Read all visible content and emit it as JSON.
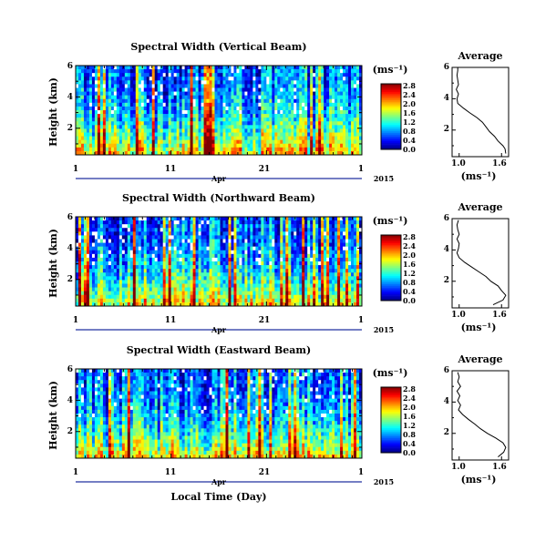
{
  "common": {
    "x_label": "Local Time (Day)",
    "x_month": "Apr",
    "x_year": "2015",
    "y_label": "Height (km)",
    "unit_label": "(ms⁻¹)",
    "avg_title": "Average",
    "avg_unit": "(ms⁻¹)"
  },
  "chart_data": [
    {
      "type": "heatmap",
      "title": "Spectral Width (Vertical Beam)",
      "x_ticks": [
        "1",
        "11",
        "21",
        "1"
      ],
      "xlim_day": [
        1,
        31
      ],
      "y_ticks": [
        "6",
        "4",
        "2"
      ],
      "ylim_km": [
        0.3,
        6.0
      ],
      "colorbar_ticks": [
        "2.8",
        "2.4",
        "2.0",
        "1.6",
        "1.2",
        "0.8",
        "0.4",
        "0.0"
      ],
      "colorbar_range": [
        0.0,
        2.8
      ],
      "average": {
        "x_ticks": [
          "1.0",
          "1.6"
        ],
        "xlim": [
          0.9,
          1.7
        ],
        "y_ticks": [
          "6",
          "4",
          "2"
        ],
        "ylim": [
          0.3,
          6.0
        ],
        "profile": [
          [
            0.5,
            1.66
          ],
          [
            0.8,
            1.65
          ],
          [
            1.0,
            1.62
          ],
          [
            1.3,
            1.55
          ],
          [
            1.6,
            1.5
          ],
          [
            1.9,
            1.43
          ],
          [
            2.2,
            1.38
          ],
          [
            2.5,
            1.33
          ],
          [
            2.8,
            1.25
          ],
          [
            3.1,
            1.15
          ],
          [
            3.4,
            1.06
          ],
          [
            3.7,
            0.98
          ],
          [
            4.0,
            0.97
          ],
          [
            4.3,
            0.99
          ],
          [
            4.6,
            0.96
          ],
          [
            4.9,
            0.99
          ],
          [
            5.2,
            0.98
          ],
          [
            5.5,
            0.97
          ],
          [
            5.8,
            0.98
          ],
          [
            6.0,
            0.98
          ]
        ]
      }
    },
    {
      "type": "heatmap",
      "title": "Spectral Width (Northward Beam)",
      "x_ticks": [
        "1",
        "11",
        "21",
        "1"
      ],
      "xlim_day": [
        1,
        31
      ],
      "y_ticks": [
        "6",
        "4",
        "2"
      ],
      "ylim_km": [
        0.3,
        6.0
      ],
      "colorbar_ticks": [
        "2.8",
        "2.4",
        "2.0",
        "1.6",
        "1.2",
        "0.8",
        "0.4",
        "0.0"
      ],
      "colorbar_range": [
        0.0,
        2.8
      ],
      "average": {
        "x_ticks": [
          "1.0",
          "1.6"
        ],
        "xlim": [
          0.9,
          1.7
        ],
        "y_ticks": [
          "6",
          "4",
          "2"
        ],
        "ylim": [
          0.3,
          6.0
        ],
        "profile": [
          [
            0.5,
            1.48
          ],
          [
            0.8,
            1.62
          ],
          [
            1.1,
            1.66
          ],
          [
            1.4,
            1.6
          ],
          [
            1.7,
            1.55
          ],
          [
            2.0,
            1.45
          ],
          [
            2.3,
            1.38
          ],
          [
            2.6,
            1.28
          ],
          [
            2.9,
            1.18
          ],
          [
            3.2,
            1.08
          ],
          [
            3.5,
            1.0
          ],
          [
            3.8,
            0.97
          ],
          [
            4.1,
            0.99
          ],
          [
            4.4,
            1.0
          ],
          [
            4.7,
            0.97
          ],
          [
            5.0,
            1.0
          ],
          [
            5.3,
            0.98
          ],
          [
            5.6,
            0.97
          ],
          [
            5.9,
            0.99
          ]
        ]
      }
    },
    {
      "type": "heatmap",
      "title": "Spectral Width (Eastward Beam)",
      "x_ticks": [
        "1",
        "11",
        "21",
        "1"
      ],
      "xlim_day": [
        1,
        31
      ],
      "y_ticks": [
        "6",
        "4",
        "2"
      ],
      "ylim_km": [
        0.3,
        6.0
      ],
      "colorbar_ticks": [
        "2.8",
        "2.4",
        "2.0",
        "1.6",
        "1.2",
        "0.8",
        "0.4",
        "0.0"
      ],
      "colorbar_range": [
        0.0,
        2.8
      ],
      "average": {
        "x_ticks": [
          "1.0",
          "1.6"
        ],
        "xlim": [
          0.9,
          1.7
        ],
        "y_ticks": [
          "6",
          "4",
          "2"
        ],
        "ylim": [
          0.3,
          6.0
        ],
        "profile": [
          [
            0.5,
            1.55
          ],
          [
            0.8,
            1.63
          ],
          [
            1.1,
            1.66
          ],
          [
            1.4,
            1.62
          ],
          [
            1.7,
            1.52
          ],
          [
            2.0,
            1.4
          ],
          [
            2.3,
            1.3
          ],
          [
            2.6,
            1.22
          ],
          [
            2.9,
            1.13
          ],
          [
            3.2,
            1.05
          ],
          [
            3.5,
            0.99
          ],
          [
            3.8,
            1.02
          ],
          [
            4.1,
            0.98
          ],
          [
            4.4,
            1.01
          ],
          [
            4.7,
            0.97
          ],
          [
            5.0,
            1.02
          ],
          [
            5.3,
            0.98
          ],
          [
            5.6,
            1.0
          ],
          [
            5.9,
            0.98
          ]
        ]
      }
    }
  ]
}
